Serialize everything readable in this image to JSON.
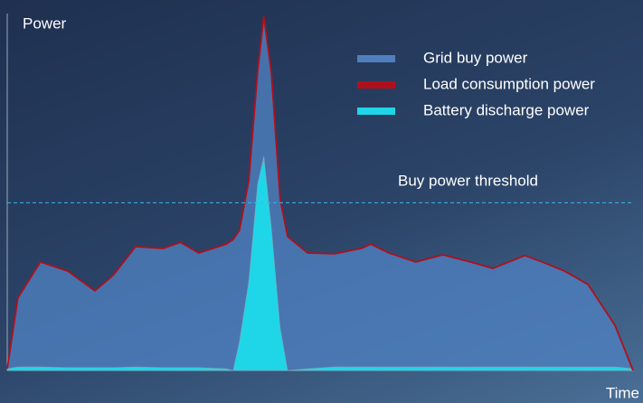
{
  "chart_data": {
    "type": "area",
    "xlabel": "Time",
    "ylabel": "Power",
    "xlim": [
      0,
      100
    ],
    "ylim": [
      0,
      100
    ],
    "x": [
      0,
      1.7,
      5.3,
      9.7,
      14,
      16.9,
      20.5,
      24.9,
      27.7,
      30.6,
      35,
      36.1,
      37.1,
      38.6,
      40,
      41,
      42.2,
      43.6,
      44.8,
      48,
      52.3,
      56.6,
      58.1,
      61,
      65.3,
      69.6,
      74,
      77.6,
      82.7,
      85.5,
      89.1,
      92.8,
      97.1,
      100
    ],
    "series": [
      {
        "name": "Grid buy power",
        "color": "#4f7fbf",
        "style": "area",
        "values": [
          0.5,
          20.3,
          30.4,
          27.8,
          22.3,
          26.6,
          34.7,
          34.2,
          35.9,
          32.9,
          35.4,
          36.7,
          39.2,
          53.2,
          83.5,
          99.2,
          83.5,
          48.1,
          37.5,
          32.9,
          32.7,
          34.2,
          35.4,
          32.9,
          30.4,
          32.4,
          30.4,
          28.6,
          32.2,
          30.4,
          27.8,
          24.1,
          12.7,
          0
        ]
      },
      {
        "name": "Load consumption power",
        "color": "#b0101c",
        "style": "line",
        "values": [
          0.5,
          20.3,
          30.4,
          27.8,
          22.3,
          26.6,
          34.7,
          34.2,
          35.9,
          32.9,
          35.4,
          36.7,
          39.2,
          53.2,
          83.5,
          99.2,
          83.5,
          48.1,
          37.5,
          32.9,
          32.7,
          34.2,
          35.4,
          32.9,
          30.4,
          32.4,
          30.4,
          28.6,
          32.2,
          30.4,
          27.8,
          24.1,
          12.7,
          0
        ]
      },
      {
        "name": "Battery discharge power",
        "color": "#1fd6e8",
        "style": "area",
        "values": [
          0.5,
          1,
          1,
          0.8,
          0.8,
          0.8,
          1,
          0.8,
          0.8,
          0.8,
          0.5,
          0,
          8,
          25,
          52,
          60,
          40,
          12,
          0,
          0.5,
          1,
          1,
          1,
          1,
          1,
          1,
          1,
          1,
          1,
          1,
          1,
          1,
          1,
          0.5
        ]
      }
    ],
    "threshold": {
      "label": "Buy power threshold",
      "value": 47,
      "color": "#3ab8e8"
    }
  }
}
